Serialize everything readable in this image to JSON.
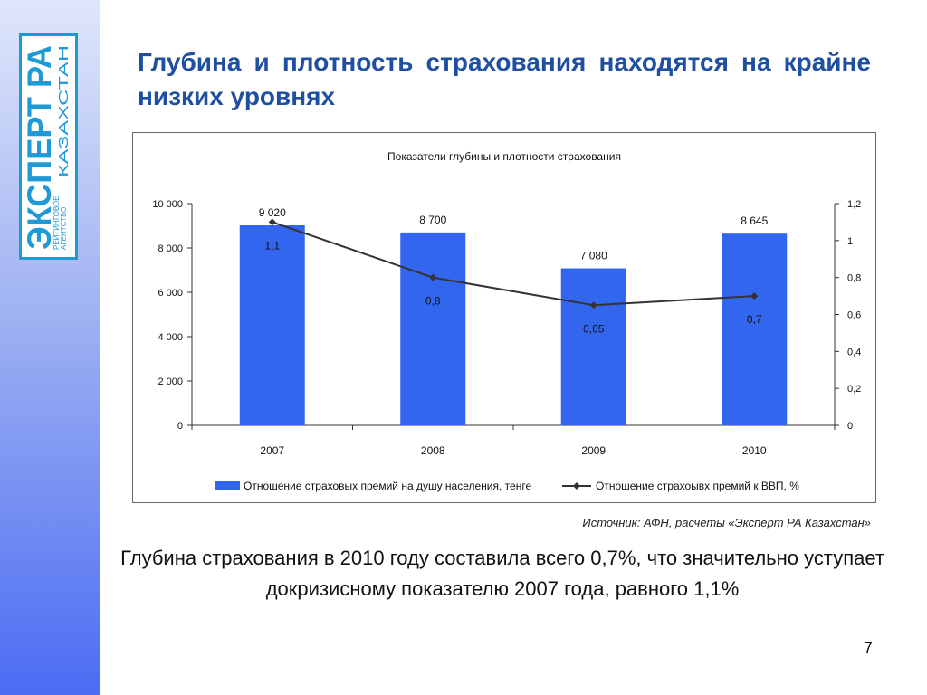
{
  "logo": {
    "main": "ЭКСПЕРТ РА",
    "country": "КАЗАХСТАН",
    "sub1": "РЕЙТИНГОВОЕ",
    "sub2": "АГЕНТСТВО"
  },
  "slide": {
    "title": "Глубина и плотность страхования находятся на крайне низких уровнях",
    "source": "Источник: АФН, расчеты «Эксперт РА Казахстан»",
    "summary": "Глубина страхования в 2010 году составила всего 0,7%, что значительно уступает докризисному показателю 2007 года, равного 1,1%",
    "page_number": "7"
  },
  "chart_data": {
    "type": "bar",
    "title": "Показатели глубины и плотности страхования",
    "categories": [
      "2007",
      "2008",
      "2009",
      "2010"
    ],
    "series": [
      {
        "name": "Отношение страховых премий на душу населения, тенге",
        "type": "bar",
        "axis": "left",
        "values": [
          9020,
          8700,
          7080,
          8645
        ],
        "labels": [
          "9 020",
          "8 700",
          "7 080",
          "8 645"
        ],
        "color": "#3366ee"
      },
      {
        "name": "Отношение страхоывх премий к ВВП, %",
        "type": "line",
        "axis": "right",
        "values": [
          1.1,
          0.8,
          0.65,
          0.7
        ],
        "labels": [
          "1,1",
          "0,8",
          "0,65",
          "0,7"
        ],
        "color": "#333333"
      }
    ],
    "left_axis": {
      "min": 0,
      "max": 10000,
      "ticks": [
        0,
        2000,
        4000,
        6000,
        8000,
        10000
      ],
      "tick_labels": [
        "0",
        "2 000",
        "4 000",
        "6 000",
        "8 000",
        "10 000"
      ]
    },
    "right_axis": {
      "min": 0,
      "max": 1.2,
      "ticks": [
        0,
        0.2,
        0.4,
        0.6,
        0.8,
        1.0,
        1.2
      ],
      "tick_labels": [
        "0",
        "0,2",
        "0,4",
        "0,6",
        "0,8",
        "1",
        "1,2"
      ]
    },
    "legend": "bottom",
    "grid": false
  }
}
